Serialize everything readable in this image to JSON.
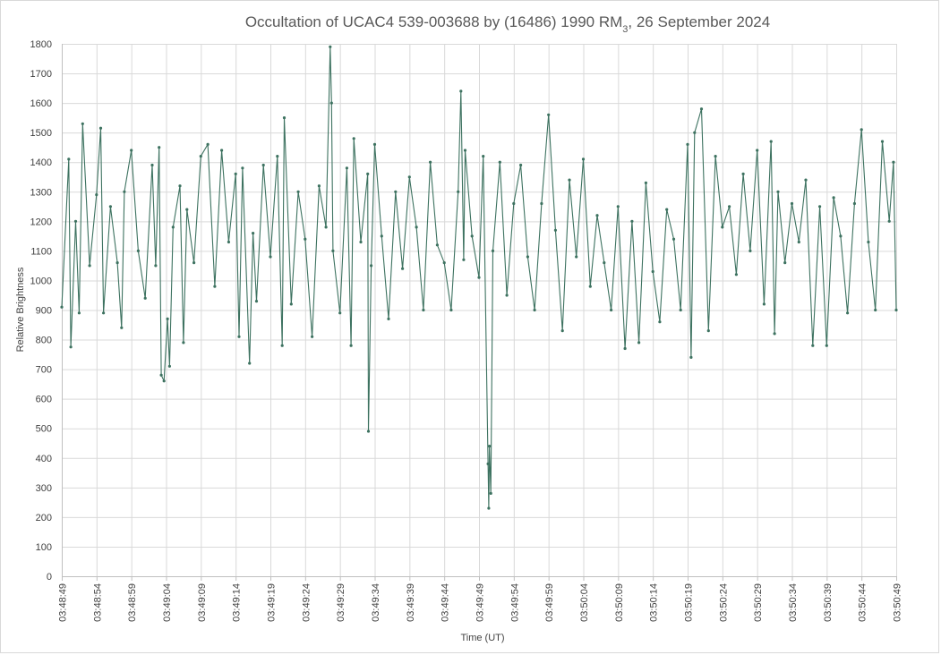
{
  "chart_data": {
    "type": "line",
    "title": {
      "main": "Occultation of UCAC4 539-003688 by (16486) 1990 RM",
      "subscript": "3",
      "suffix": ", 26 September 2024"
    },
    "xlabel": "Time (UT)",
    "ylabel": "Relative  Brightness",
    "ylim": [
      0,
      1800
    ],
    "y_ticks": [
      0,
      100,
      200,
      300,
      400,
      500,
      600,
      700,
      800,
      900,
      1000,
      1100,
      1200,
      1300,
      1400,
      1500,
      1600,
      1700,
      1800
    ],
    "x_range_seconds": [
      "03:48:49",
      "03:50:49"
    ],
    "x_ticks": [
      "03:48:49",
      "03:48:54",
      "03:48:59",
      "03:49:04",
      "03:49:09",
      "03:49:14",
      "03:49:19",
      "03:49:24",
      "03:49:29",
      "03:49:34",
      "03:49:39",
      "03:49:44",
      "03:49:49",
      "03:49:54",
      "03:49:59",
      "03:50:04",
      "03:50:09",
      "03:50:14",
      "03:50:19",
      "03:50:24",
      "03:50:29",
      "03:50:34",
      "03:50:39",
      "03:50:44",
      "03:50:49"
    ],
    "grid": true,
    "legend": "none",
    "series_color": "#3d7260",
    "marker": "small-dot",
    "series": [
      {
        "points": [
          [
            "03:48:49",
            910
          ],
          [
            "03:48:50",
            1410
          ],
          [
            "03:48:50.3",
            775
          ],
          [
            "03:48:51",
            1200
          ],
          [
            "03:48:51.5",
            890
          ],
          [
            "03:48:52",
            1530
          ],
          [
            "03:48:53",
            1050
          ],
          [
            "03:48:54",
            1290
          ],
          [
            "03:48:54.6",
            1515
          ],
          [
            "03:48:55",
            890
          ],
          [
            "03:48:56",
            1250
          ],
          [
            "03:48:57",
            1060
          ],
          [
            "03:48:57.6",
            840
          ],
          [
            "03:48:58",
            1300
          ],
          [
            "03:48:59",
            1440
          ],
          [
            "03:49:00",
            1100
          ],
          [
            "03:49:01",
            940
          ],
          [
            "03:49:02",
            1390
          ],
          [
            "03:49:02.5",
            1050
          ],
          [
            "03:49:03",
            1450
          ],
          [
            "03:49:03.3",
            680
          ],
          [
            "03:49:03.7",
            660
          ],
          [
            "03:49:04.2",
            870
          ],
          [
            "03:49:04.5",
            710
          ],
          [
            "03:49:05",
            1180
          ],
          [
            "03:49:06",
            1320
          ],
          [
            "03:49:06.5",
            790
          ],
          [
            "03:49:07",
            1240
          ],
          [
            "03:49:08",
            1060
          ],
          [
            "03:49:09",
            1420
          ],
          [
            "03:49:10",
            1460
          ],
          [
            "03:49:11",
            980
          ],
          [
            "03:49:12",
            1440
          ],
          [
            "03:49:13",
            1130
          ],
          [
            "03:49:14",
            1360
          ],
          [
            "03:49:14.5",
            810
          ],
          [
            "03:49:15",
            1380
          ],
          [
            "03:49:16",
            720
          ],
          [
            "03:49:16.5",
            1160
          ],
          [
            "03:49:17",
            930
          ],
          [
            "03:49:18",
            1390
          ],
          [
            "03:49:19",
            1080
          ],
          [
            "03:49:20",
            1420
          ],
          [
            "03:49:20.7",
            780
          ],
          [
            "03:49:21",
            1550
          ],
          [
            "03:49:22",
            920
          ],
          [
            "03:49:23",
            1300
          ],
          [
            "03:49:24",
            1140
          ],
          [
            "03:49:25",
            810
          ],
          [
            "03:49:26",
            1320
          ],
          [
            "03:49:27",
            1180
          ],
          [
            "03:49:27.6",
            1790
          ],
          [
            "03:49:27.8",
            1600
          ],
          [
            "03:49:28",
            1100
          ],
          [
            "03:49:29",
            890
          ],
          [
            "03:49:30",
            1380
          ],
          [
            "03:49:30.6",
            780
          ],
          [
            "03:49:31",
            1480
          ],
          [
            "03:49:32",
            1130
          ],
          [
            "03:49:33",
            1360
          ],
          [
            "03:49:33.1",
            490
          ],
          [
            "03:49:33.5",
            1050
          ],
          [
            "03:49:34",
            1460
          ],
          [
            "03:49:35",
            1150
          ],
          [
            "03:49:36",
            870
          ],
          [
            "03:49:37",
            1300
          ],
          [
            "03:49:38",
            1040
          ],
          [
            "03:49:39",
            1350
          ],
          [
            "03:49:40",
            1180
          ],
          [
            "03:49:41",
            900
          ],
          [
            "03:49:42",
            1400
          ],
          [
            "03:49:43",
            1120
          ],
          [
            "03:49:44",
            1060
          ],
          [
            "03:49:45",
            900
          ],
          [
            "03:49:46",
            1300
          ],
          [
            "03:49:46.4",
            1640
          ],
          [
            "03:49:46.8",
            1070
          ],
          [
            "03:49:47",
            1440
          ],
          [
            "03:49:48",
            1150
          ],
          [
            "03:49:49",
            1010
          ],
          [
            "03:49:49.6",
            1420
          ],
          [
            "03:49:50.3",
            380
          ],
          [
            "03:49:50.4",
            230
          ],
          [
            "03:49:50.5",
            440
          ],
          [
            "03:49:50.7",
            280
          ],
          [
            "03:49:51",
            1100
          ],
          [
            "03:49:52",
            1400
          ],
          [
            "03:49:53",
            950
          ],
          [
            "03:49:54",
            1260
          ],
          [
            "03:49:55",
            1390
          ],
          [
            "03:49:56",
            1080
          ],
          [
            "03:49:57",
            900
          ],
          [
            "03:49:58",
            1260
          ],
          [
            "03:49:59",
            1560
          ],
          [
            "03:50:00",
            1170
          ],
          [
            "03:50:01",
            830
          ],
          [
            "03:50:02",
            1340
          ],
          [
            "03:50:03",
            1080
          ],
          [
            "03:50:04",
            1410
          ],
          [
            "03:50:05",
            980
          ],
          [
            "03:50:06",
            1220
          ],
          [
            "03:50:07",
            1060
          ],
          [
            "03:50:08",
            900
          ],
          [
            "03:50:09",
            1250
          ],
          [
            "03:50:10",
            770
          ],
          [
            "03:50:11",
            1200
          ],
          [
            "03:50:12",
            790
          ],
          [
            "03:50:13",
            1330
          ],
          [
            "03:50:14",
            1030
          ],
          [
            "03:50:15",
            860
          ],
          [
            "03:50:16",
            1240
          ],
          [
            "03:50:17",
            1140
          ],
          [
            "03:50:18",
            900
          ],
          [
            "03:50:19",
            1460
          ],
          [
            "03:50:19.5",
            740
          ],
          [
            "03:50:20",
            1500
          ],
          [
            "03:50:21",
            1580
          ],
          [
            "03:50:22",
            830
          ],
          [
            "03:50:23",
            1420
          ],
          [
            "03:50:24",
            1180
          ],
          [
            "03:50:25",
            1250
          ],
          [
            "03:50:26",
            1020
          ],
          [
            "03:50:27",
            1360
          ],
          [
            "03:50:28",
            1100
          ],
          [
            "03:50:29",
            1440
          ],
          [
            "03:50:30",
            920
          ],
          [
            "03:50:31",
            1470
          ],
          [
            "03:50:31.5",
            820
          ],
          [
            "03:50:32",
            1300
          ],
          [
            "03:50:33",
            1060
          ],
          [
            "03:50:34",
            1260
          ],
          [
            "03:50:35",
            1130
          ],
          [
            "03:50:36",
            1340
          ],
          [
            "03:50:37",
            780
          ],
          [
            "03:50:38",
            1250
          ],
          [
            "03:50:39",
            780
          ],
          [
            "03:50:40",
            1280
          ],
          [
            "03:50:41",
            1150
          ],
          [
            "03:50:42",
            890
          ],
          [
            "03:50:43",
            1260
          ],
          [
            "03:50:44",
            1510
          ],
          [
            "03:50:45",
            1130
          ],
          [
            "03:50:46",
            900
          ],
          [
            "03:50:47",
            1470
          ],
          [
            "03:50:48",
            1200
          ],
          [
            "03:50:48.6",
            1400
          ],
          [
            "03:50:49",
            900
          ]
        ]
      }
    ]
  }
}
